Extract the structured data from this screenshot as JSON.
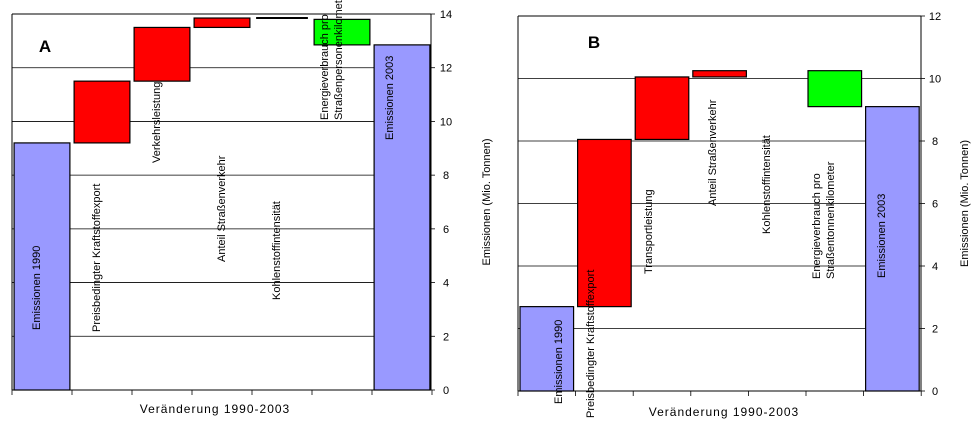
{
  "chart_data": [
    {
      "type": "waterfall",
      "panel_label": "A",
      "categories": [
        "Emissionen 1990",
        "Preisbedingter Kraftstoffexport",
        "Verkehrsleistung",
        "Anteil Straßenverkehr",
        "Kohlenstoffintensität",
        "Energieverbrauch pro\nStraßenpersonenkilometer",
        "Emissionen 2003"
      ],
      "steps": [
        {
          "from": 0,
          "to": 9.2,
          "kind": "total"
        },
        {
          "from": 9.2,
          "to": 11.5,
          "kind": "increase"
        },
        {
          "from": 11.5,
          "to": 13.5,
          "kind": "increase"
        },
        {
          "from": 13.5,
          "to": 13.85,
          "kind": "increase"
        },
        {
          "from": 13.8,
          "to": 13.85,
          "kind": "line"
        },
        {
          "from": 13.8,
          "to": 12.85,
          "kind": "decrease"
        },
        {
          "from": 0,
          "to": 12.85,
          "kind": "total"
        }
      ],
      "xlabel": "Veränderung 1990-2003",
      "ylabel": "Emissionen (Mio. Tonnen)",
      "ylim": [
        0,
        14
      ],
      "yticks": [
        "0",
        "2",
        "4",
        "6",
        "8",
        "10",
        "12",
        "14"
      ],
      "grid": true
    },
    {
      "type": "waterfall",
      "panel_label": "B",
      "categories": [
        "Emissionen 1990",
        "Preisbedingter Kraftstoffexport",
        "Transportleistung",
        "Anteil Straßenverkehr",
        "Kohlenstoffintensität",
        "Energieverbrauch pro\nStraßentonnenkilometer",
        "Emissionen 2003"
      ],
      "steps": [
        {
          "from": 0,
          "to": 2.7,
          "kind": "total"
        },
        {
          "from": 2.7,
          "to": 8.05,
          "kind": "increase"
        },
        {
          "from": 8.05,
          "to": 10.05,
          "kind": "increase"
        },
        {
          "from": 10.05,
          "to": 10.25,
          "kind": "increase"
        },
        {
          "from": 10.25,
          "to": 10.25,
          "kind": "none"
        },
        {
          "from": 10.25,
          "to": 9.1,
          "kind": "decrease"
        },
        {
          "from": 0,
          "to": 9.1,
          "kind": "total"
        }
      ],
      "xlabel": "Veränderung 1990-2003",
      "ylabel": "Emissionen (Mio. Tonnen)",
      "ylim": [
        0,
        12
      ],
      "yticks": [
        "0",
        "2",
        "4",
        "6",
        "8",
        "10",
        "12"
      ],
      "grid": true
    }
  ],
  "colors": {
    "total": "#9999ff",
    "increase": "#ff0000",
    "decrease": "#00ff00",
    "line": "#000000"
  }
}
